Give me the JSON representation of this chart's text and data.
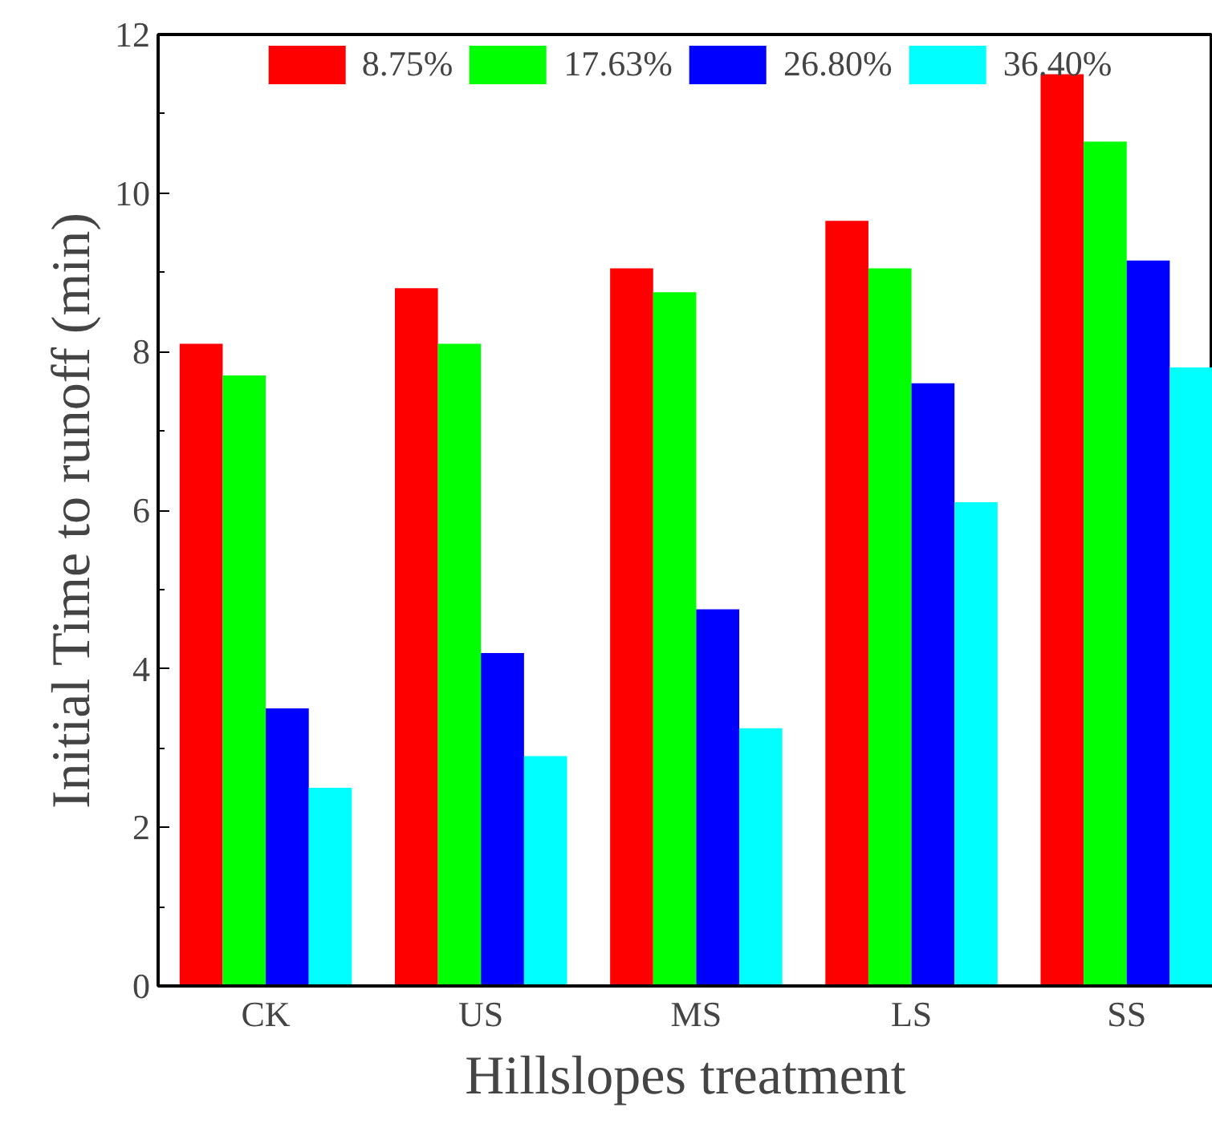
{
  "chart_data": {
    "type": "bar",
    "xlabel": "Hillslopes treatment",
    "ylabel": "Initial Time to runoff (min)",
    "categories": [
      "CK",
      "US",
      "MS",
      "LS",
      "SS"
    ],
    "series": [
      {
        "name": "8.75%",
        "color": "#ff0000",
        "values": [
          8.1,
          8.8,
          9.05,
          9.65,
          11.5
        ]
      },
      {
        "name": "17.63%",
        "color": "#00ff00",
        "values": [
          7.7,
          8.1,
          8.75,
          9.05,
          10.65
        ]
      },
      {
        "name": "26.80%",
        "color": "#0000ff",
        "values": [
          3.5,
          4.2,
          4.75,
          7.6,
          9.15
        ]
      },
      {
        "name": "36.40%",
        "color": "#00ffff",
        "values": [
          2.5,
          2.9,
          3.25,
          6.1,
          7.8
        ]
      }
    ],
    "ylim": [
      0,
      12
    ],
    "yticks": [
      0,
      2,
      4,
      6,
      8,
      10,
      12
    ],
    "grid": false,
    "legend": "top"
  }
}
